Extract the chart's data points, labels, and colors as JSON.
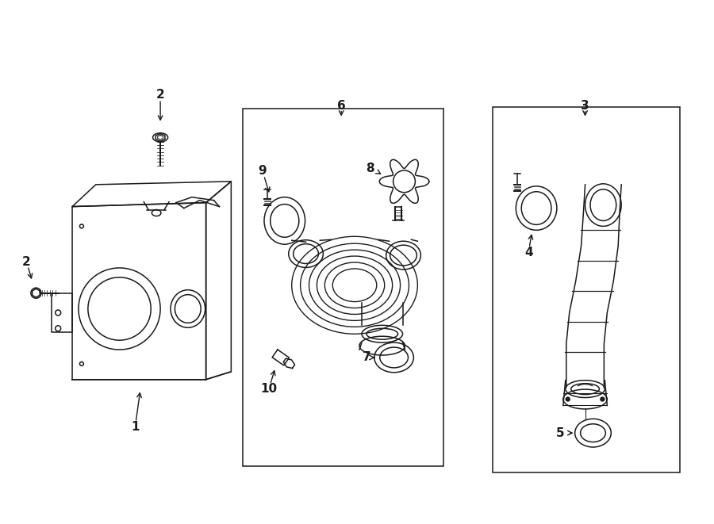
{
  "bg_color": "#ffffff",
  "line_color": "#1a1a1a",
  "fig_width": 9.0,
  "fig_height": 6.61,
  "dpi": 100,
  "parts": {
    "label1": "1",
    "label2": "2",
    "label3": "3",
    "label4": "4",
    "label5": "5",
    "label6": "6",
    "label7": "7",
    "label8": "8",
    "label9": "9",
    "label10": "10"
  }
}
